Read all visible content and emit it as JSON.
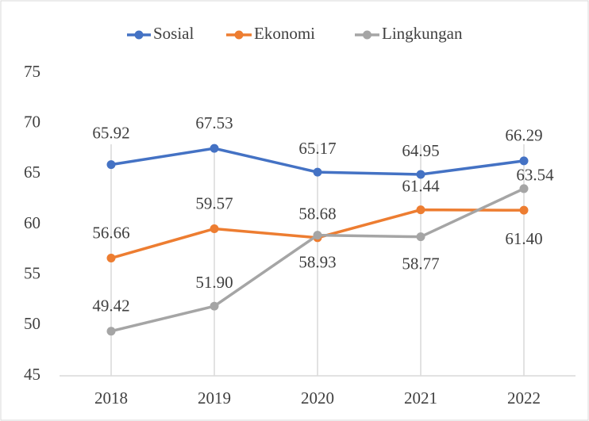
{
  "chart_data": {
    "type": "line",
    "categories": [
      "2018",
      "2019",
      "2020",
      "2021",
      "2022"
    ],
    "series": [
      {
        "name": "Sosial",
        "color": "#4472c4",
        "values": [
          65.92,
          67.53,
          65.17,
          64.95,
          66.29
        ],
        "value_labels": [
          "65.92",
          "67.53",
          "65.17",
          "64.95",
          "66.29"
        ]
      },
      {
        "name": "Ekonomi",
        "color": "#ed7d31",
        "values": [
          56.66,
          59.57,
          58.68,
          61.44,
          61.4
        ],
        "value_labels": [
          "56.66",
          "59.57",
          "58.68",
          "61.44",
          "61.40"
        ]
      },
      {
        "name": "Lingkungan",
        "color": "#a5a5a5",
        "values": [
          49.42,
          51.9,
          58.93,
          58.77,
          63.54
        ],
        "value_labels": [
          "49.42",
          "51.90",
          "58.93",
          "58.77",
          "63.54"
        ]
      }
    ],
    "ylim": [
      45,
      75
    ],
    "yticks": [
      45,
      50,
      55,
      60,
      65,
      70,
      75
    ],
    "legend": "top"
  }
}
